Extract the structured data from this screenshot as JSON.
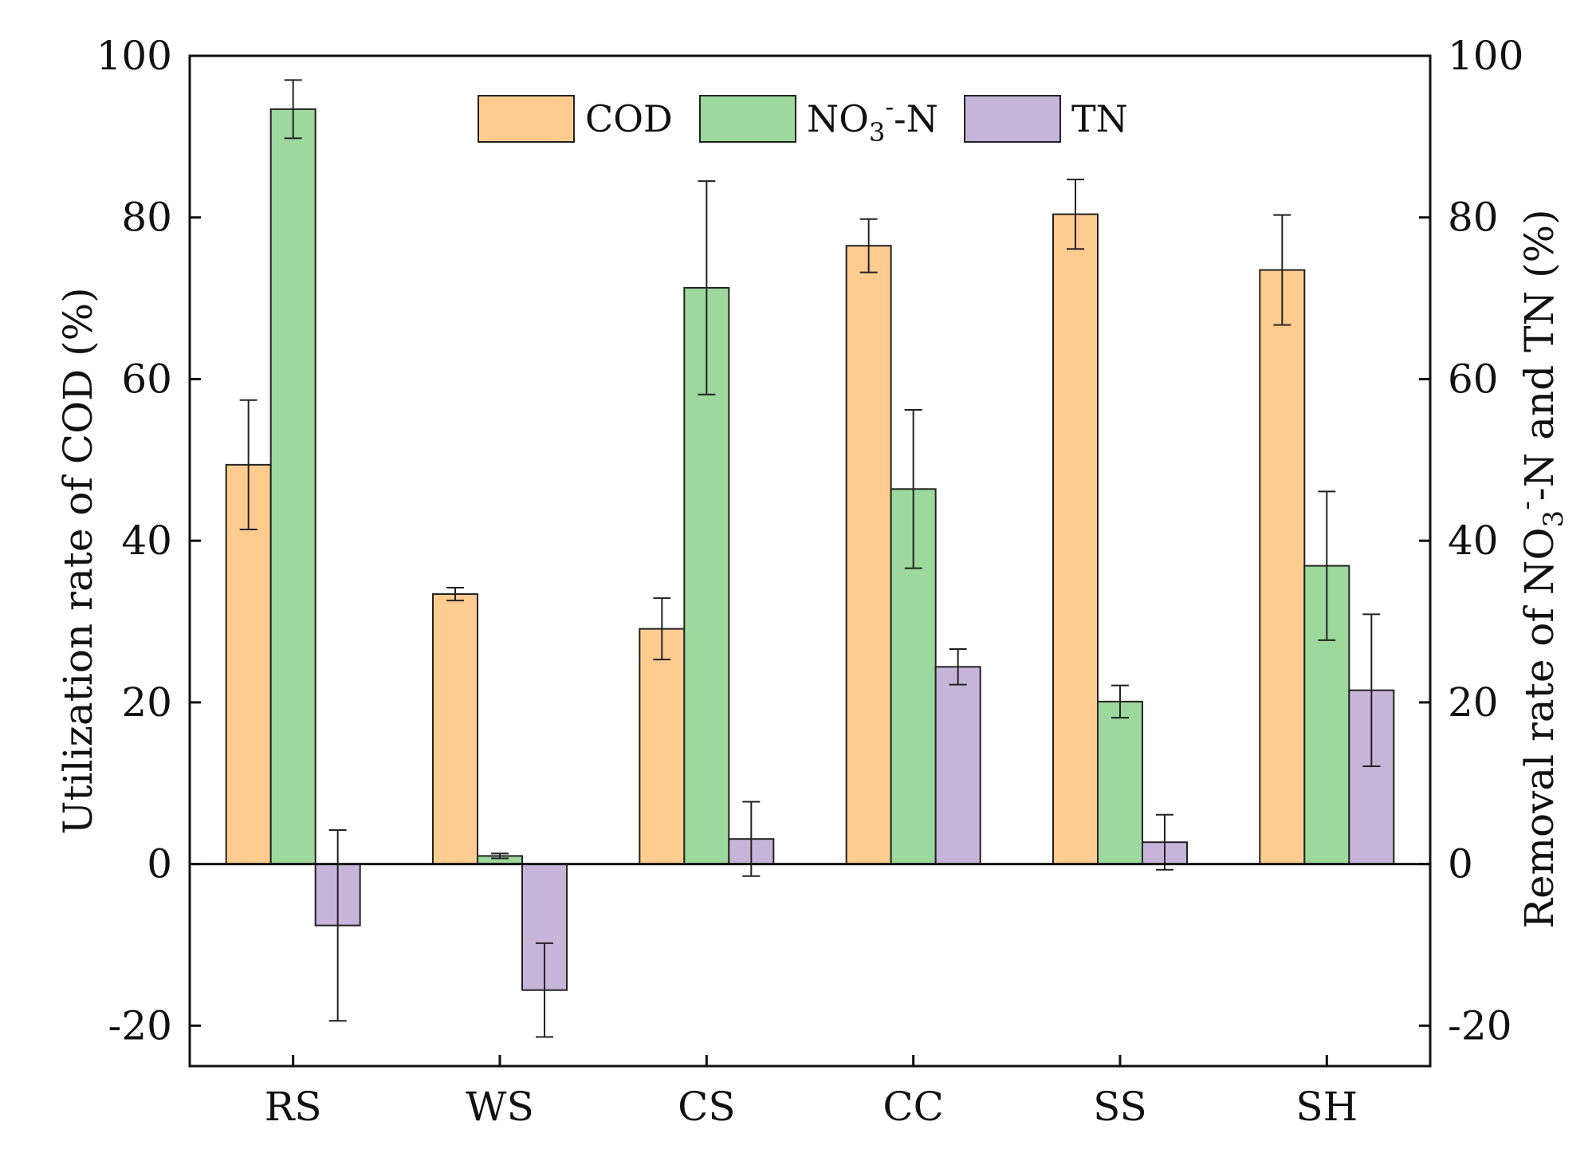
{
  "chart_data": {
    "type": "bar",
    "categories": [
      "RS",
      "WS",
      "CS",
      "CC",
      "SS",
      "SH"
    ],
    "series": [
      {
        "name": "COD",
        "axis": "left",
        "color": "#FFCC8F",
        "values": [
          49.4,
          33.4,
          29.1,
          76.5,
          80.4,
          73.5
        ],
        "errors": [
          8.0,
          0.8,
          3.8,
          3.3,
          4.3,
          6.8
        ]
      },
      {
        "name": "NO3--N",
        "axis": "right",
        "color": "#9DD89D",
        "values": [
          93.4,
          1.0,
          71.3,
          46.4,
          20.1,
          36.9
        ],
        "errors": [
          3.6,
          0.3,
          13.2,
          9.8,
          2.0,
          9.2
        ]
      },
      {
        "name": "TN",
        "axis": "right",
        "color": "#C6B4D9",
        "values": [
          -7.6,
          -15.6,
          3.1,
          24.4,
          2.7,
          21.5
        ],
        "errors": [
          11.8,
          5.8,
          4.6,
          2.2,
          3.4,
          9.4
        ]
      }
    ],
    "legend": [
      {
        "name": "COD",
        "label": "COD"
      },
      {
        "name": "NO3--N",
        "label_main": "NO",
        "label_sub": "3",
        "label_sup": "-",
        "label_tail": "-N"
      },
      {
        "name": "TN",
        "label": "TN"
      }
    ],
    "y_ticks": [
      "-20",
      "0",
      "20",
      "40",
      "60",
      "80",
      "100"
    ],
    "ylim": [
      -25,
      100
    ],
    "y2lim": [
      -25,
      100
    ],
    "ylabel": "Utilization rate of COD (%)",
    "y2label": {
      "pre": "Removal rate of NO",
      "sub": "3",
      "sup": "-",
      "post": "-N and TN (%)"
    },
    "xlabel": "",
    "title": "",
    "legend_position": "top-center",
    "grid": false,
    "zero_line": true
  }
}
